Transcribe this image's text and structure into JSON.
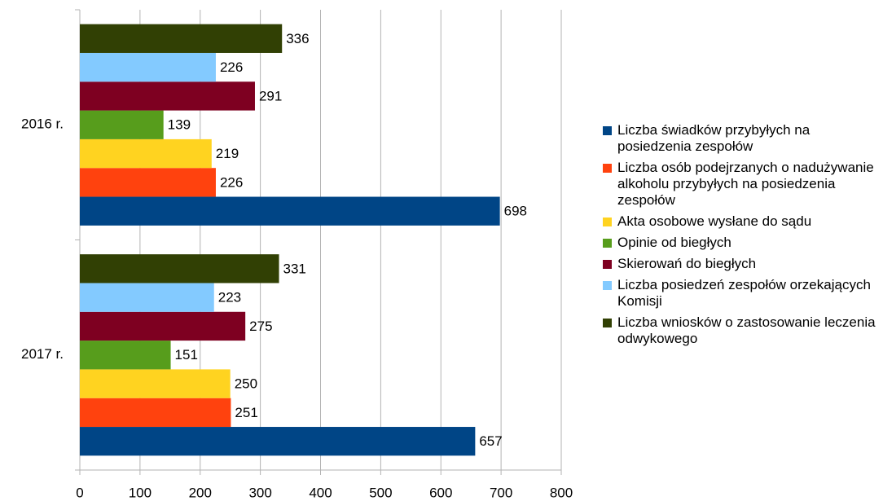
{
  "chart_data": {
    "type": "bar",
    "orientation": "horizontal",
    "categories": [
      "2016 r.",
      "2017 r."
    ],
    "series": [
      {
        "name": "Liczba świadków przybyłych na posiedzenia zespołów",
        "color": "#004586",
        "values": [
          698,
          657
        ]
      },
      {
        "name": "Liczba osób podejrzanych o nadużywanie alkoholu przybyłych na posiedzenia zespołów",
        "color": "#ff420e",
        "values": [
          226,
          251
        ]
      },
      {
        "name": "Akta osobowe wysłane do sądu",
        "color": "#ffd320",
        "values": [
          219,
          250
        ]
      },
      {
        "name": "Opinie od biegłych",
        "color": "#579d1c",
        "values": [
          139,
          151
        ]
      },
      {
        "name": "Skierowań do biegłych",
        "color": "#7e0021",
        "values": [
          291,
          275
        ]
      },
      {
        "name": "Liczba posiedzeń zespołów orzekających Komisji",
        "color": "#83caff",
        "values": [
          226,
          223
        ]
      },
      {
        "name": "Liczba wniosków o zastosowanie leczenia odwykowego",
        "color": "#314004",
        "values": [
          336,
          331
        ]
      }
    ],
    "xlim": [
      0,
      800
    ],
    "xticks": [
      0,
      100,
      200,
      300,
      400,
      500,
      600,
      700,
      800
    ],
    "grid": true,
    "legend": "right"
  }
}
